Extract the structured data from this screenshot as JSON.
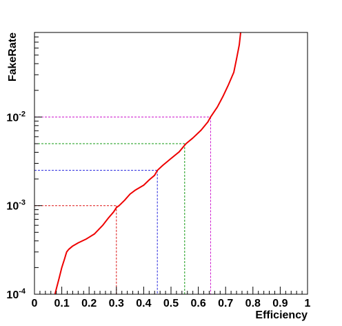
{
  "chart_data": {
    "type": "line",
    "xlabel": "Efficiency",
    "ylabel": "FakeRate",
    "xlim": [
      0,
      1
    ],
    "ylim": [
      0.0001,
      0.09
    ],
    "y_scale": "log",
    "grid": false,
    "legend": "none",
    "x_ticks": [
      "0",
      "0.1",
      "0.2",
      "0.3",
      "0.4",
      "0.5",
      "0.6",
      "0.7",
      "0.8",
      "0.9",
      "1"
    ],
    "y_ticks": [
      {
        "value": 0.0001,
        "base": "10",
        "exp": "-4"
      },
      {
        "value": 0.001,
        "base": "10",
        "exp": "-3"
      },
      {
        "value": 0.01,
        "base": "10",
        "exp": "-2"
      }
    ],
    "series": [
      {
        "color": "#ee0000",
        "points": [
          [
            0.075,
            0.0001
          ],
          [
            0.08,
            0.000115
          ],
          [
            0.09,
            0.00015
          ],
          [
            0.1,
            0.0002
          ],
          [
            0.11,
            0.00025
          ],
          [
            0.115,
            0.00028
          ],
          [
            0.118,
            0.0003
          ],
          [
            0.125,
            0.00032
          ],
          [
            0.14,
            0.00035
          ],
          [
            0.16,
            0.00038
          ],
          [
            0.19,
            0.00042
          ],
          [
            0.22,
            0.00048
          ],
          [
            0.25,
            0.0006
          ],
          [
            0.27,
            0.00072
          ],
          [
            0.29,
            0.00085
          ],
          [
            0.3,
            0.00095
          ],
          [
            0.31,
            0.001
          ],
          [
            0.33,
            0.00115
          ],
          [
            0.35,
            0.00135
          ],
          [
            0.37,
            0.0015
          ],
          [
            0.4,
            0.0017
          ],
          [
            0.42,
            0.00195
          ],
          [
            0.44,
            0.0022
          ],
          [
            0.45,
            0.0025
          ],
          [
            0.47,
            0.00285
          ],
          [
            0.5,
            0.0034
          ],
          [
            0.53,
            0.00405
          ],
          [
            0.55,
            0.0048
          ],
          [
            0.555,
            0.005
          ],
          [
            0.58,
            0.0058
          ],
          [
            0.61,
            0.0071
          ],
          [
            0.635,
            0.0088
          ],
          [
            0.645,
            0.01
          ],
          [
            0.67,
            0.013
          ],
          [
            0.69,
            0.017
          ],
          [
            0.71,
            0.023
          ],
          [
            0.73,
            0.032
          ],
          [
            0.74,
            0.045
          ],
          [
            0.75,
            0.065
          ],
          [
            0.755,
            0.09
          ]
        ]
      }
    ],
    "guides": [
      {
        "x": 0.3,
        "y": 0.001,
        "color": "#dd1111"
      },
      {
        "x": 0.45,
        "y": 0.0025,
        "color": "#2222dd"
      },
      {
        "x": 0.55,
        "y": 0.005,
        "color": "#119911"
      },
      {
        "x": 0.645,
        "y": 0.01,
        "color": "#cc11cc"
      }
    ]
  }
}
